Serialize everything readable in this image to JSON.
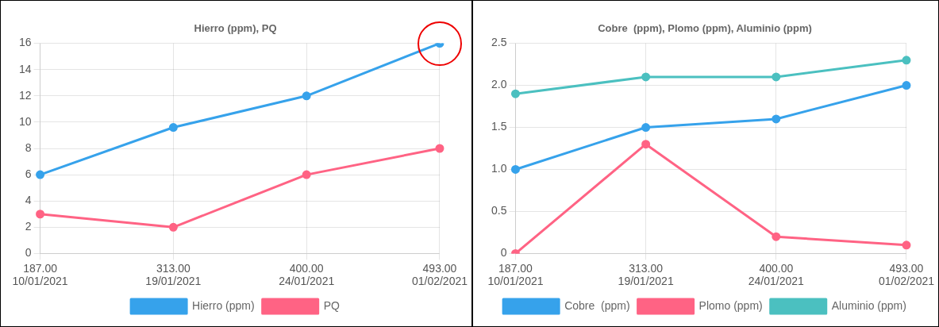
{
  "chart_data": [
    {
      "type": "line",
      "title": "Hierro (ppm), PQ",
      "categories": [
        "187.00\n10/01/2021",
        "313.00\n19/01/2021",
        "400.00\n24/01/2021",
        "493.00\n01/02/2021"
      ],
      "series": [
        {
          "name": "Hierro (ppm)",
          "color": "#36a2eb",
          "values": [
            6,
            9.6,
            12,
            16
          ]
        },
        {
          "name": "PQ",
          "color": "#ff6384",
          "values": [
            3,
            2,
            6,
            8
          ]
        }
      ],
      "ylim": [
        0,
        16
      ],
      "yticks": [
        0,
        2,
        4,
        6,
        8,
        10,
        12,
        14,
        16
      ],
      "grid": true,
      "legend": "bottom",
      "marker": "circle",
      "line_style": "solid"
    },
    {
      "type": "line",
      "title": "Cobre  (ppm), Plomo (ppm), Aluminio (ppm)",
      "categories": [
        "187.00\n10/01/2021",
        "313.00\n19/01/2021",
        "400.00\n24/01/2021",
        "493.00\n01/02/2021"
      ],
      "series": [
        {
          "name": "Cobre  (ppm)",
          "color": "#36a2eb",
          "values": [
            1.0,
            1.5,
            1.6,
            2.0
          ]
        },
        {
          "name": "Plomo (ppm)",
          "color": "#ff6384",
          "values": [
            0,
            1.3,
            0.2,
            0.1
          ]
        },
        {
          "name": "Aluminio (ppm)",
          "color": "#4bc0c0",
          "values": [
            1.9,
            2.1,
            2.1,
            2.3
          ]
        }
      ],
      "ylim": [
        0,
        2.5
      ],
      "yticks": [
        0,
        {
          "value": 0.5,
          "label": "0.5"
        },
        {
          "value": 1,
          "label": "1.0"
        },
        {
          "value": 1.5,
          "label": "1.5"
        },
        {
          "value": 2,
          "label": "2.0"
        },
        {
          "value": 2.5,
          "label": "2.5"
        }
      ],
      "grid": true,
      "legend": "bottom",
      "marker": "circle",
      "line_style": "solid"
    }
  ]
}
